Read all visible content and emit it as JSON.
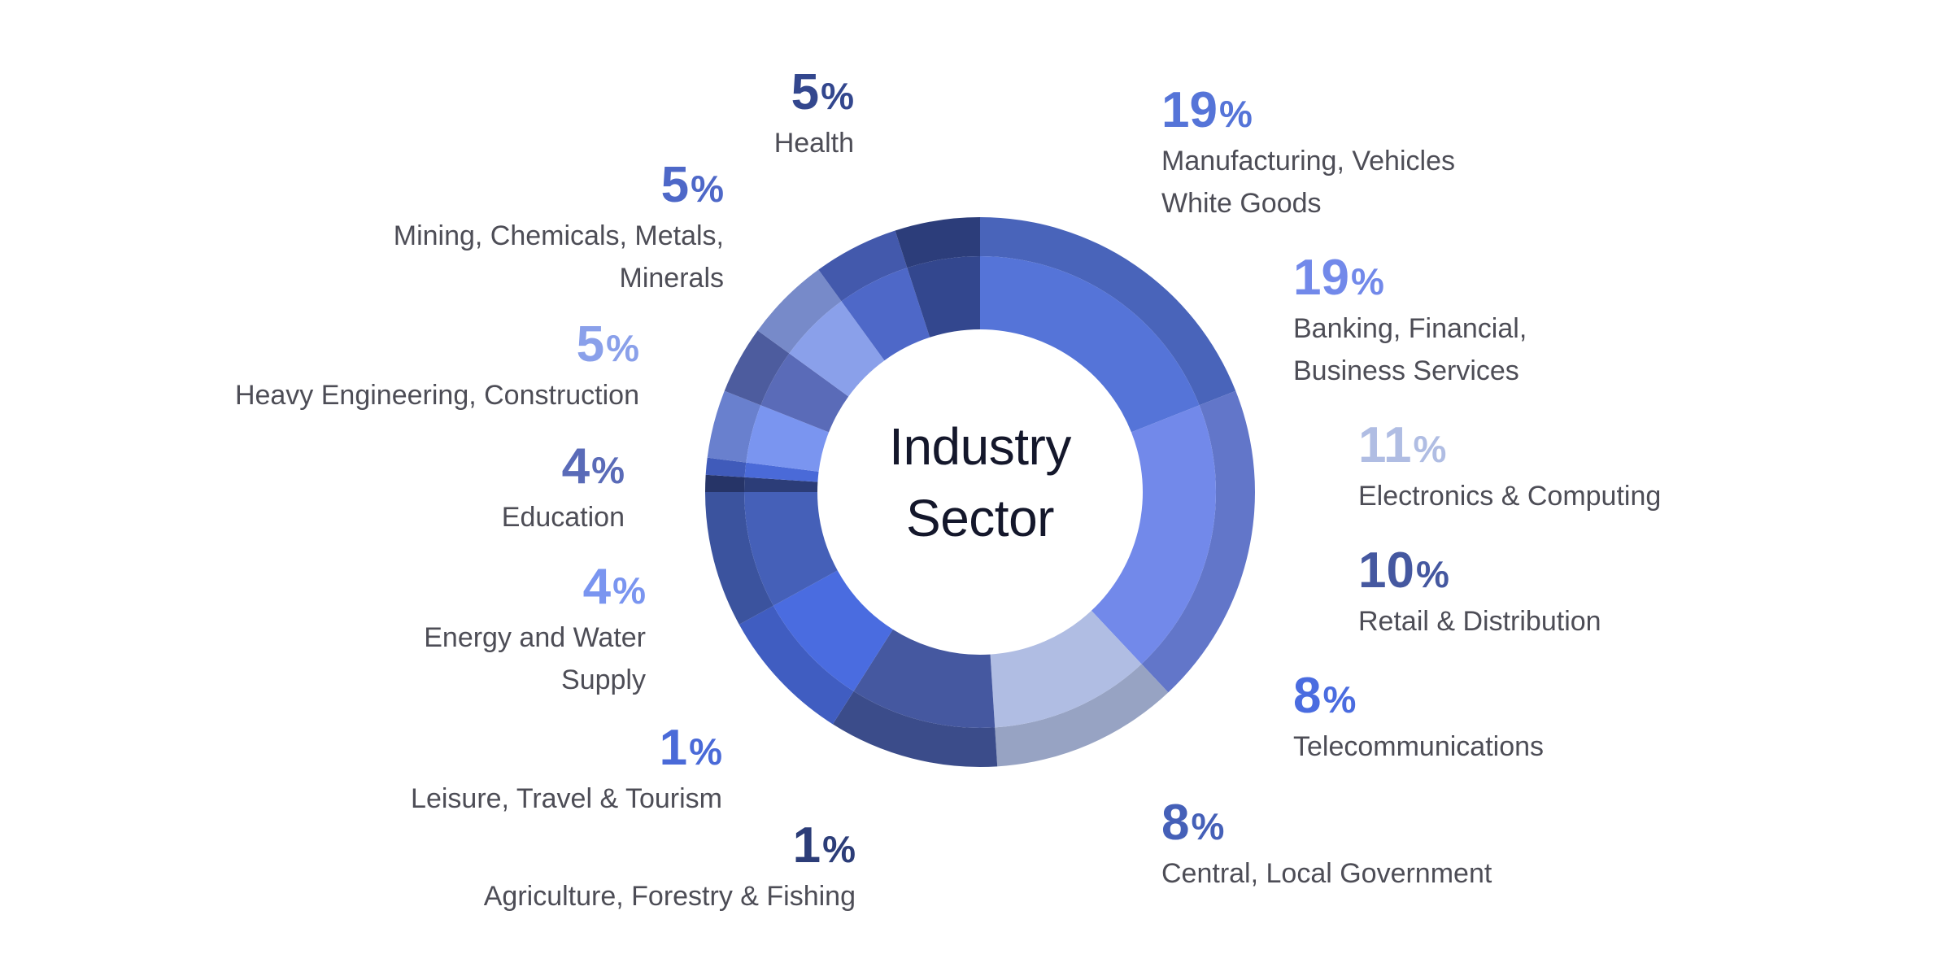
{
  "center_title": {
    "line1": "Industry",
    "line2": "Sector"
  },
  "colors": {
    "text": "#4d4d56",
    "title": "#14172b"
  },
  "chart_data": {
    "type": "pie",
    "variant": "donut",
    "title": "Industry Sector",
    "unit": "%",
    "slices": [
      {
        "value": 19,
        "name_lines": [
          "Manufacturing, Vehicles",
          "White Goods"
        ],
        "color": "#5574d8"
      },
      {
        "value": 19,
        "name_lines": [
          "Banking, Financial,",
          "Business Services"
        ],
        "color": "#7289ea"
      },
      {
        "value": 11,
        "name_lines": [
          "Electronics & Computing"
        ],
        "color": "#b0bde3"
      },
      {
        "value": 10,
        "name_lines": [
          "Retail & Distribution"
        ],
        "color": "#4558a0"
      },
      {
        "value": 8,
        "name_lines": [
          "Telecommunications"
        ],
        "color": "#4a6ce0"
      },
      {
        "value": 8,
        "name_lines": [
          "Central, Local Government"
        ],
        "color": "#4560b8"
      },
      {
        "value": 1,
        "name_lines": [
          "Agriculture, Forestry & Fishing"
        ],
        "color": "#2c3d78"
      },
      {
        "value": 1,
        "name_lines": [
          "Leisure, Travel & Tourism"
        ],
        "color": "#4a6ad8"
      },
      {
        "value": 4,
        "name_lines": [
          "Energy and Water",
          "Supply"
        ],
        "color": "#7a95f0"
      },
      {
        "value": 4,
        "name_lines": [
          "Education"
        ],
        "color": "#5a6bb8"
      },
      {
        "value": 5,
        "name_lines": [
          "Heavy Engineering, Construction"
        ],
        "color": "#8aa0ea"
      },
      {
        "value": 5,
        "name_lines": [
          "Mining, Chemicals, Metals,",
          "Minerals"
        ],
        "color": "#4e68c8"
      },
      {
        "value": 5,
        "name_lines": [
          "Health"
        ],
        "color": "#33478e"
      }
    ]
  }
}
